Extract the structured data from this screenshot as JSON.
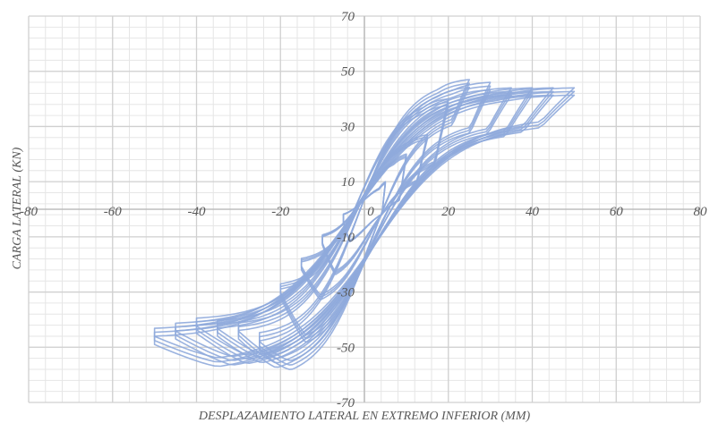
{
  "chart_data": {
    "type": "scatter",
    "style": "hysteresis loops with smooth lines",
    "title": "",
    "xlabel": "DESPLAZAMIENTO LATERAL EN EXTREMO INFERIOR (MM)",
    "ylabel": "CARGA LATERAL (KN)",
    "xlim": [
      -80,
      80
    ],
    "ylim": [
      -70,
      70
    ],
    "x_major_step": 20,
    "y_major_step": 20,
    "grid": true,
    "minor_grid": true,
    "legend": "none",
    "x_ticks": [
      "-80",
      "-60",
      "-40",
      "-20",
      "0",
      "20",
      "40",
      "60",
      "80"
    ],
    "y_ticks": [
      "70",
      "50",
      "30",
      "10",
      "-10",
      "-30",
      "-50",
      "-70"
    ],
    "series_color": "#8faadc",
    "cycles": [
      {
        "amplitude": 5,
        "peak_pos": 10,
        "peak_neg": -5,
        "repeats": 3
      },
      {
        "amplitude": 10,
        "peak_pos": 20,
        "peak_neg": -13,
        "repeats": 3
      },
      {
        "amplitude": 15,
        "peak_pos": 27,
        "peak_neg": -22,
        "repeats": 3
      },
      {
        "amplitude": 20,
        "peak_pos": 40,
        "peak_neg": -32,
        "repeats": 3
      },
      {
        "amplitude": 25,
        "peak_pos": 47,
        "peak_neg": -51,
        "repeats": 3
      },
      {
        "amplitude": 30,
        "peak_pos": 46,
        "peak_neg": -47,
        "repeats": 3
      },
      {
        "amplitude": 35,
        "peak_pos": 44,
        "peak_neg": -46,
        "repeats": 3
      },
      {
        "amplitude": 40,
        "peak_pos": 44,
        "peak_neg": -45,
        "repeats": 3
      },
      {
        "amplitude": 45,
        "peak_pos": 44,
        "peak_neg": -47,
        "repeats": 3
      },
      {
        "amplitude": 50,
        "peak_pos": 44,
        "peak_neg": -49,
        "repeats": 3
      }
    ]
  }
}
